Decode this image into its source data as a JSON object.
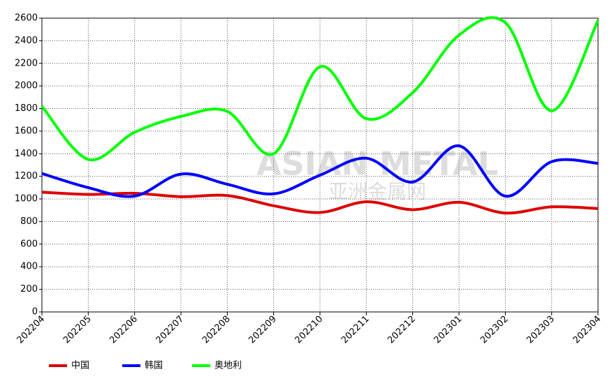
{
  "chart_data": {
    "type": "line",
    "categories": [
      "202204",
      "202205",
      "202206",
      "202207",
      "202208",
      "202209",
      "202210",
      "202211",
      "202212",
      "202301",
      "202302",
      "202303",
      "202304"
    ],
    "series": [
      {
        "name": "中国",
        "color": "#dd0000",
        "values": [
          1060,
          1040,
          1050,
          1020,
          1030,
          940,
          880,
          975,
          905,
          970,
          875,
          930,
          915
        ]
      },
      {
        "name": "韩国",
        "color": "#0000ff",
        "values": [
          1225,
          1100,
          1025,
          1220,
          1130,
          1045,
          1210,
          1360,
          1150,
          1470,
          1025,
          1330,
          1315
        ]
      },
      {
        "name": "奥地利",
        "color": "#00ff00",
        "values": [
          1820,
          1350,
          1590,
          1730,
          1775,
          1400,
          2170,
          1710,
          1940,
          2450,
          2560,
          1780,
          2580
        ]
      }
    ],
    "ylim": [
      0,
      2600
    ],
    "yticks": [
      0,
      200,
      400,
      600,
      800,
      1000,
      1200,
      1400,
      1600,
      1800,
      2000,
      2200,
      2400,
      2600
    ],
    "grid": true,
    "legend": "bottom",
    "watermark": [
      "ASIAN METAL",
      "亚洲金属网"
    ]
  }
}
